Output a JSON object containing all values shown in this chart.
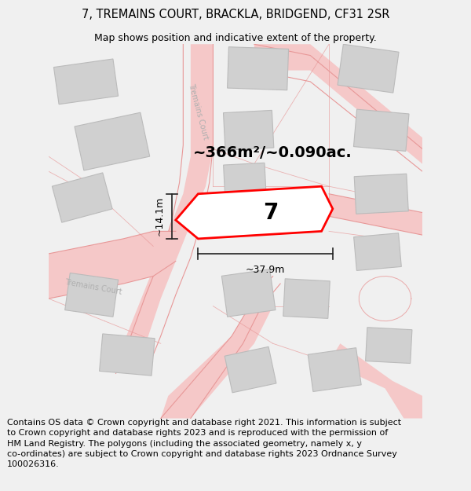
{
  "title_line1": "7, TREMAINS COURT, BRACKLA, BRIDGEND, CF31 2SR",
  "title_line2": "Map shows position and indicative extent of the property.",
  "footer_text": "Contains OS data © Crown copyright and database right 2021. This information is subject to Crown copyright and database rights 2023 and is reproduced with the permission of HM Land Registry. The polygons (including the associated geometry, namely x, y co-ordinates) are subject to Crown copyright and database rights 2023 Ordnance Survey 100026316.",
  "area_label": "~366m²/~0.090ac.",
  "number_label": "7",
  "width_label": "~37.9m",
  "height_label": "~14.1m",
  "road_label_diag": "Tremains Court",
  "road_label_horiz": "Tremains Court",
  "bg_color": "#f0f0f0",
  "map_bg": "#ffffff",
  "plot_color_fill": "#ffffff",
  "plot_color_edge": "#ff0000",
  "building_color": "#d0d0d0",
  "building_edge": "#bbbbbb",
  "road_fill_color": "#f5c8c8",
  "road_edge_color": "#e89898",
  "dim_line_color": "#222222",
  "title_fontsize": 10.5,
  "subtitle_fontsize": 9,
  "footer_fontsize": 8,
  "road_label_color": "#b0b0b0",
  "area_label_fontsize": 14,
  "num_label_fontsize": 20
}
